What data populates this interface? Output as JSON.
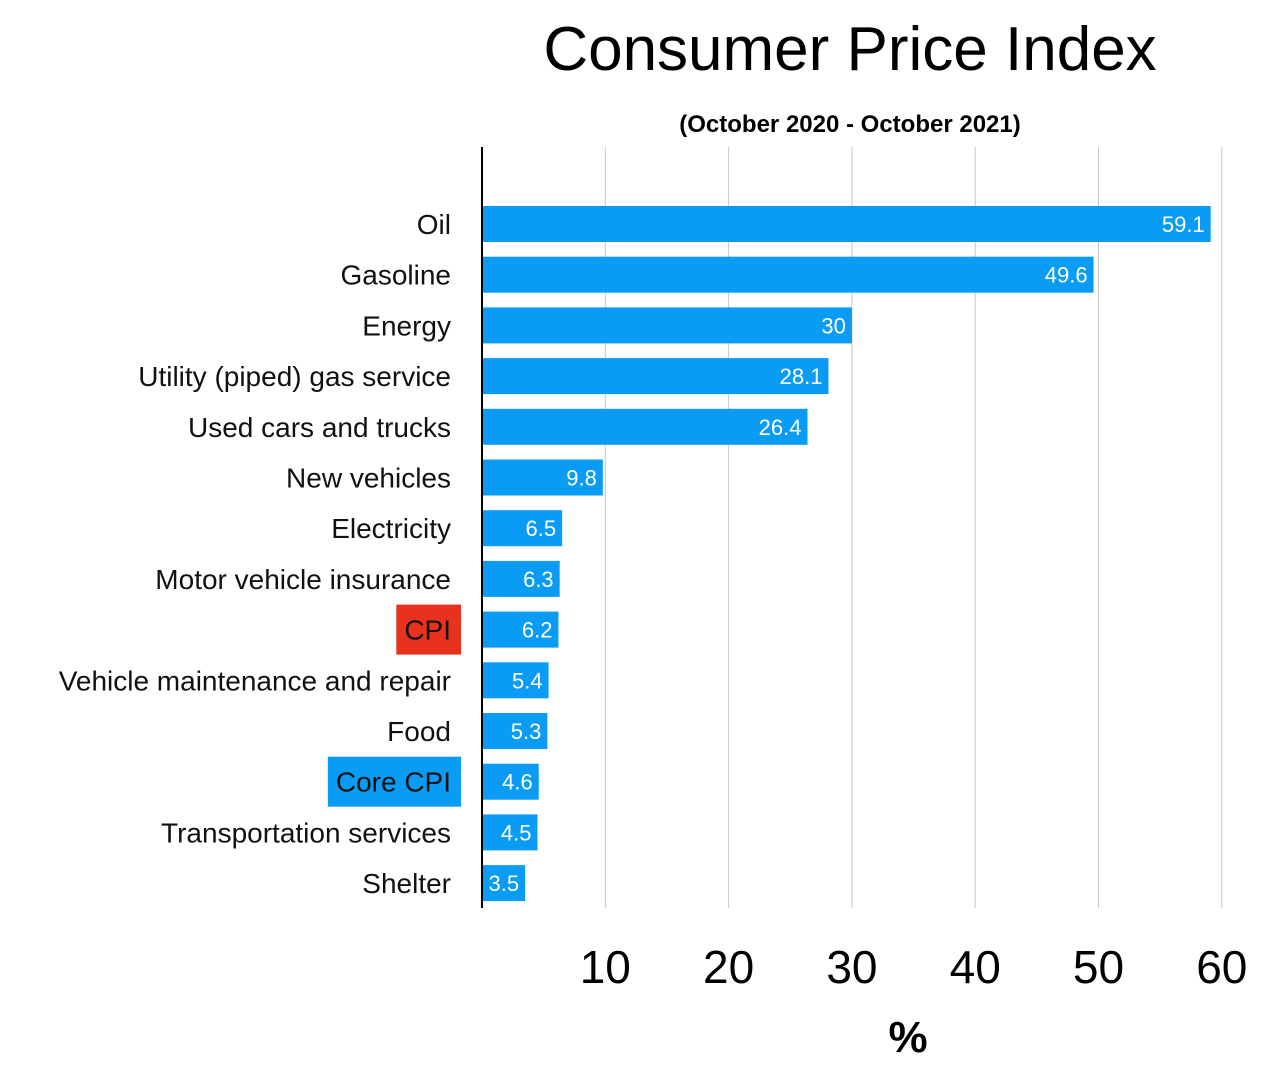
{
  "chart_data": {
    "type": "bar",
    "orientation": "horizontal",
    "title": "Consumer Price Index",
    "subtitle": "(October 2020 - October 2021)",
    "xlabel": "%",
    "ylabel": "",
    "xlim": [
      0,
      60
    ],
    "xticks": [
      10,
      20,
      30,
      40,
      50,
      60
    ],
    "grid": true,
    "categories": [
      "Oil",
      "Gasoline",
      "Energy",
      "Utility (piped) gas service",
      "Used cars and trucks",
      "New vehicles",
      "Electricity",
      "Motor vehicle insurance",
      "CPI",
      "Vehicle maintenance and repair",
      "Food",
      "Core CPI",
      "Transportation services",
      "Shelter"
    ],
    "values": [
      59.1,
      49.6,
      30,
      28.1,
      26.4,
      9.8,
      6.5,
      6.3,
      6.2,
      5.4,
      5.3,
      4.6,
      4.5,
      3.5
    ],
    "value_labels": [
      "59.1",
      "49.6",
      "30",
      "28.1",
      "26.4",
      "9.8",
      "6.5",
      "6.3",
      "6.2",
      "5.4",
      "5.3",
      "4.6",
      "4.5",
      "3.5"
    ],
    "highlighted_categories": [
      {
        "category": "CPI",
        "color": "#e8321e"
      },
      {
        "category": "Core CPI",
        "color": "#0a9cf5"
      }
    ],
    "colors": {
      "bar": "#0a9cf5",
      "grid": "#c8c8c8",
      "axis": "#000000"
    }
  }
}
